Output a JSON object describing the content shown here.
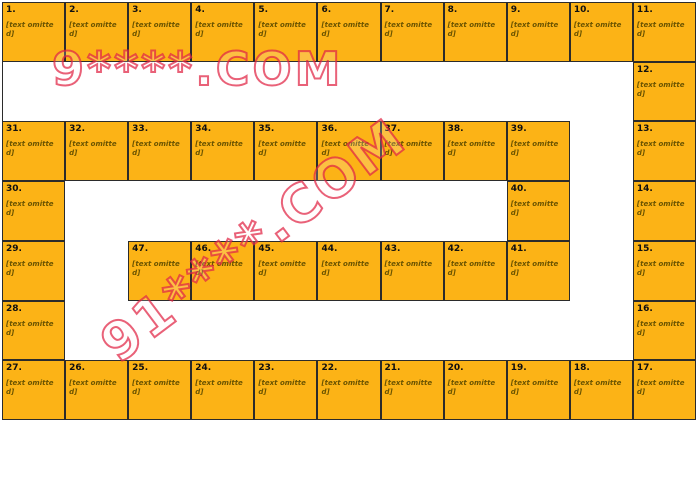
{
  "_note": "Sanitized recreation: the source image's cell bodies contained explicit adult text which has been replaced by a placeholder; watermark site URLs are masked.",
  "board": {
    "columns": 11,
    "rows": 7,
    "cell_color": "#FCB316",
    "border_color": "#2B2B2B",
    "placeholder_text": "[text omitted]",
    "grid": [
      [
        1,
        2,
        3,
        4,
        5,
        6,
        7,
        8,
        9,
        10,
        11
      ],
      [
        null,
        null,
        null,
        null,
        null,
        null,
        null,
        null,
        null,
        null,
        12
      ],
      [
        31,
        32,
        33,
        34,
        35,
        36,
        37,
        38,
        39,
        null,
        13
      ],
      [
        30,
        null,
        null,
        null,
        null,
        null,
        null,
        null,
        40,
        null,
        14
      ],
      [
        29,
        null,
        47,
        46,
        45,
        44,
        43,
        42,
        41,
        null,
        15
      ],
      [
        28,
        null,
        null,
        null,
        null,
        null,
        null,
        null,
        null,
        null,
        16
      ],
      [
        27,
        26,
        25,
        24,
        23,
        22,
        21,
        20,
        19,
        18,
        17
      ]
    ]
  },
  "watermarks": [
    {
      "text": "9****.COM",
      "style": "horizontal",
      "color": "#E02444"
    },
    {
      "text": "91****.COM",
      "style": "diagonal",
      "color": "#E02444"
    }
  ]
}
